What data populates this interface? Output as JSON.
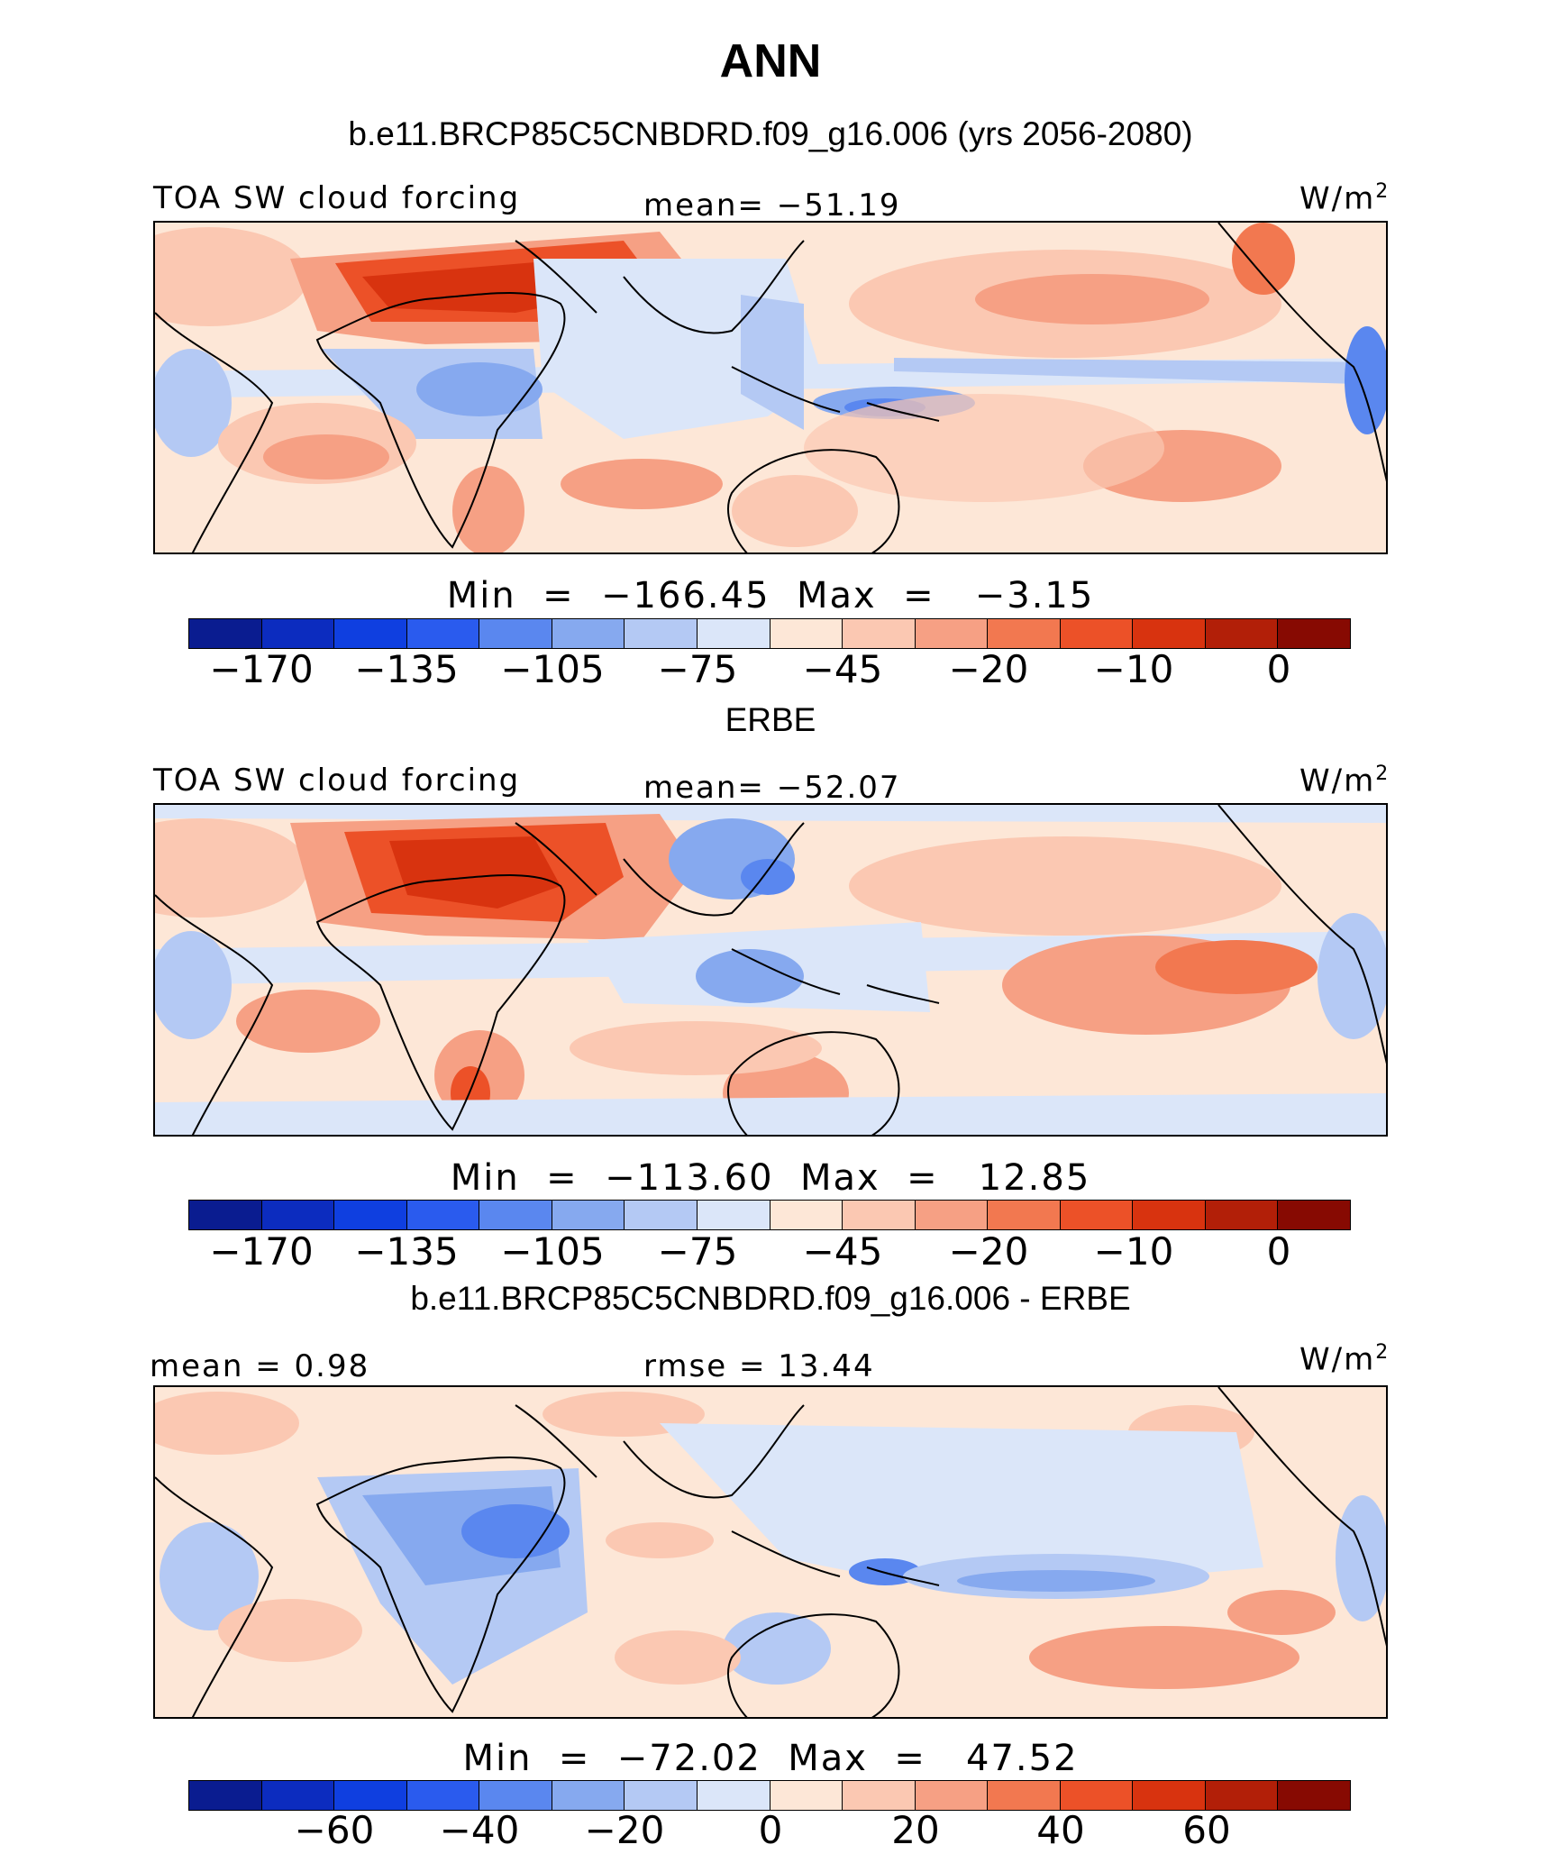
{
  "title": "ANN",
  "colors": {
    "cbar": [
      "#0a1c90",
      "#0c2cbf",
      "#0f3fe0",
      "#2a5bee",
      "#5a87ef",
      "#86a9ef",
      "#b4c9f4",
      "#dbe6f9",
      "#fde7d7",
      "#fbc8b2",
      "#f6a084",
      "#f27850",
      "#ec5128",
      "#d8330f",
      "#b21f08",
      "#870a02"
    ]
  },
  "panels": [
    {
      "heading": "b.e11.BRCP85C5CNBDRD.f09_g16.006 (yrs 2056-2080)",
      "left_label": "TOA SW cloud forcing",
      "center_label": "mean=  −51.19",
      "units": "W/m",
      "units_sup": "2",
      "minmax": "Min  =  −166.45  Max  =   −3.15",
      "ticks": [
        "−170",
        "−135",
        "−105",
        "−75",
        "−45",
        "−20",
        "−10",
        "0"
      ]
    },
    {
      "heading": "ERBE",
      "left_label": "TOA SW cloud forcing",
      "center_label": "mean=  −52.07",
      "units": "W/m",
      "units_sup": "2",
      "minmax": "Min  =  −113.60  Max  =   12.85",
      "ticks": [
        "−170",
        "−135",
        "−105",
        "−75",
        "−45",
        "−20",
        "−10",
        "0"
      ]
    },
    {
      "heading": "b.e11.BRCP85C5CNBDRD.f09_g16.006 - ERBE",
      "left_label": "mean =    0.98",
      "center_label": "rmse  =   13.44",
      "units": "W/m",
      "units_sup": "2",
      "minmax": "Min  =  −72.02  Max  =   47.52",
      "ticks": [
        "−60",
        "−40",
        "−20",
        "0",
        "20",
        "40",
        "60"
      ]
    }
  ]
}
